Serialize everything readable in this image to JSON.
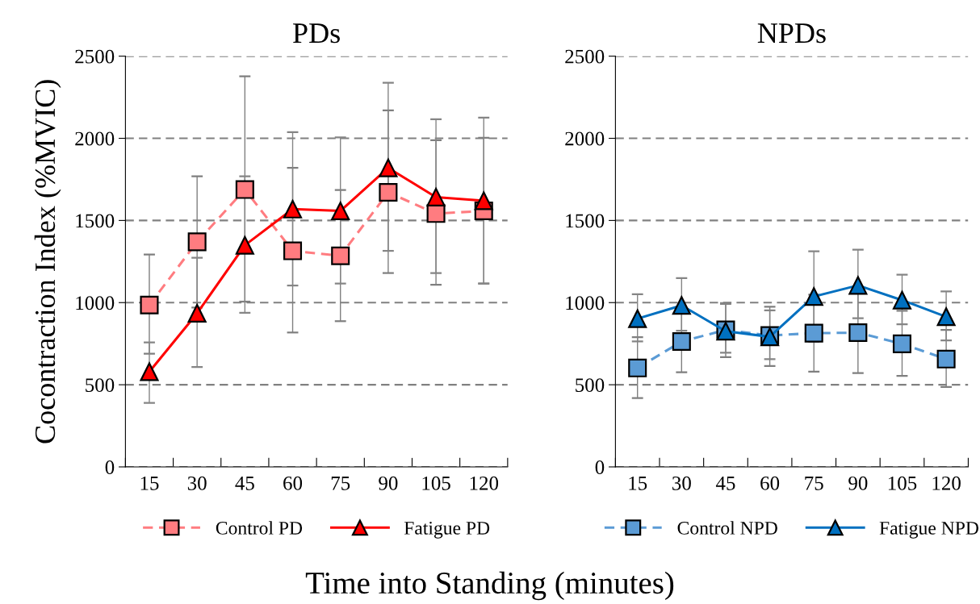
{
  "chart_data": [
    {
      "type": "line",
      "title": "PDs",
      "ylabel": "Cocontraction Index (%MVIC)",
      "xlabel": "Time into Standing (minutes)",
      "categories": [
        "15",
        "30",
        "45",
        "60",
        "75",
        "90",
        "105",
        "120"
      ],
      "ylim": [
        0,
        2500
      ],
      "yticks": [
        0,
        500,
        1000,
        1500,
        2000,
        2500
      ],
      "grid": "y",
      "legend": "bottom",
      "series": [
        {
          "name": "Control PD",
          "color": "#ff7c80",
          "marker": "square",
          "line_style": "dashed",
          "values": [
            985,
            1370,
            1688,
            1315,
            1285,
            1671,
            1542,
            1558
          ],
          "errors": [
            [
              689,
              1293
            ],
            [
              970,
              1769
            ],
            [
              1006,
              2377
            ],
            [
              818,
              1820
            ],
            [
              887,
              1685
            ],
            [
              1180,
              2170
            ],
            [
              1109,
              1988
            ],
            [
              1116,
              2003
            ]
          ]
        },
        {
          "name": "Fatigue PD",
          "color": "#ff0000",
          "marker": "triangle",
          "line_style": "solid",
          "values": [
            579,
            935,
            1349,
            1569,
            1558,
            1820,
            1642,
            1620
          ],
          "errors": [
            [
              389,
              758
            ],
            [
              608,
              1273
            ],
            [
              938,
              1769
            ],
            [
              1104,
              2037
            ],
            [
              1116,
              2006
            ],
            [
              1315,
              2338
            ],
            [
              1180,
              2116
            ],
            [
              1116,
              2126
            ]
          ]
        }
      ]
    },
    {
      "type": "line",
      "title": "NPDs",
      "categories": [
        "15",
        "30",
        "45",
        "60",
        "75",
        "90",
        "105",
        "120"
      ],
      "ylim": [
        0,
        2500
      ],
      "yticks": [
        0,
        500,
        1000,
        1500,
        2000,
        2500
      ],
      "grid": "y",
      "legend": "bottom",
      "series": [
        {
          "name": "Control NPD",
          "color": "#5b9bd5",
          "marker": "square",
          "line_style": "dashed",
          "values": [
            602,
            763,
            834,
            800,
            814,
            817,
            749,
            656
          ],
          "errors": [
            [
              419,
              790
            ],
            [
              576,
              950
            ],
            [
              668,
              997
            ],
            [
              614,
              975
            ],
            [
              580,
              1048
            ],
            [
              571,
              1063
            ],
            [
              554,
              950
            ],
            [
              486,
              834
            ]
          ]
        },
        {
          "name": "Fatigue NPD",
          "color": "#0070c0",
          "marker": "triangle",
          "line_style": "solid",
          "values": [
            902,
            983,
            826,
            792,
            1037,
            1105,
            1015,
            914
          ],
          "errors": [
            [
              764,
              1051
            ],
            [
              829,
              1149
            ],
            [
              695,
              992
            ],
            [
              656,
              953
            ],
            [
              762,
              1312
            ],
            [
              905,
              1322
            ],
            [
              868,
              1170
            ],
            [
              770,
              1068
            ]
          ]
        }
      ]
    }
  ]
}
